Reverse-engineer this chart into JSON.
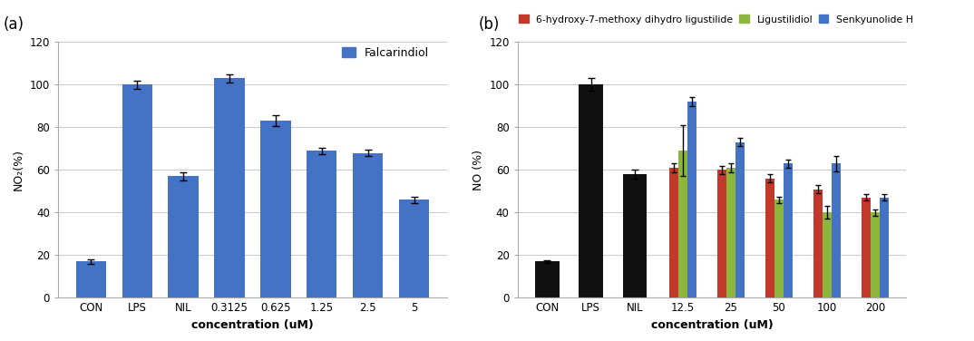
{
  "panel_a": {
    "title": "Falcarindiol",
    "xlabel": "concentration (uM)",
    "ylabel": "NO₂(%)",
    "categories": [
      "CON",
      "LPS",
      "NIL",
      "0.3125",
      "0.625",
      "1.25",
      "2.5",
      "5"
    ],
    "values": [
      17,
      100,
      57,
      103,
      83,
      69,
      68,
      46
    ],
    "errors": [
      1.0,
      2.0,
      2.0,
      2.0,
      2.5,
      1.5,
      1.5,
      1.5
    ],
    "bar_color": "#4472C4",
    "ylim": [
      0,
      120
    ],
    "yticks": [
      0,
      20,
      40,
      60,
      80,
      100,
      120
    ]
  },
  "panel_b": {
    "xlabel": "concentration (uM)",
    "ylabel": "NO (%)",
    "categories": [
      "CON",
      "LPS",
      "NIL",
      "12.5",
      "25",
      "50",
      "100",
      "200"
    ],
    "legend_labels": [
      "6-hydroxy-7-methoxy dihydro ligustilide",
      "Ligustilidiol",
      "Senkyunolide H"
    ],
    "colors": [
      "#C0392B",
      "#8DB63C",
      "#4472C4"
    ],
    "black_color": "#111111",
    "con_lps_nil_values": [
      17,
      100,
      58
    ],
    "con_lps_nil_errors": [
      0.5,
      3.0,
      2.0
    ],
    "compound_values": {
      "red": [
        61,
        60,
        56,
        51,
        47
      ],
      "green": [
        69,
        61,
        46,
        40,
        40
      ],
      "blue": [
        92,
        73,
        63,
        63,
        47
      ]
    },
    "compound_errors": {
      "red": [
        2.0,
        2.0,
        2.0,
        2.0,
        1.5
      ],
      "green": [
        12.0,
        2.0,
        1.5,
        3.0,
        1.5
      ],
      "blue": [
        2.0,
        2.0,
        2.0,
        3.5,
        1.5
      ]
    },
    "ylim": [
      0,
      120
    ],
    "yticks": [
      0,
      20,
      40,
      60,
      80,
      100,
      120
    ]
  },
  "bg_color": "#ffffff",
  "plot_bg_color": "#f8f8f8",
  "grid_color": "#cccccc"
}
